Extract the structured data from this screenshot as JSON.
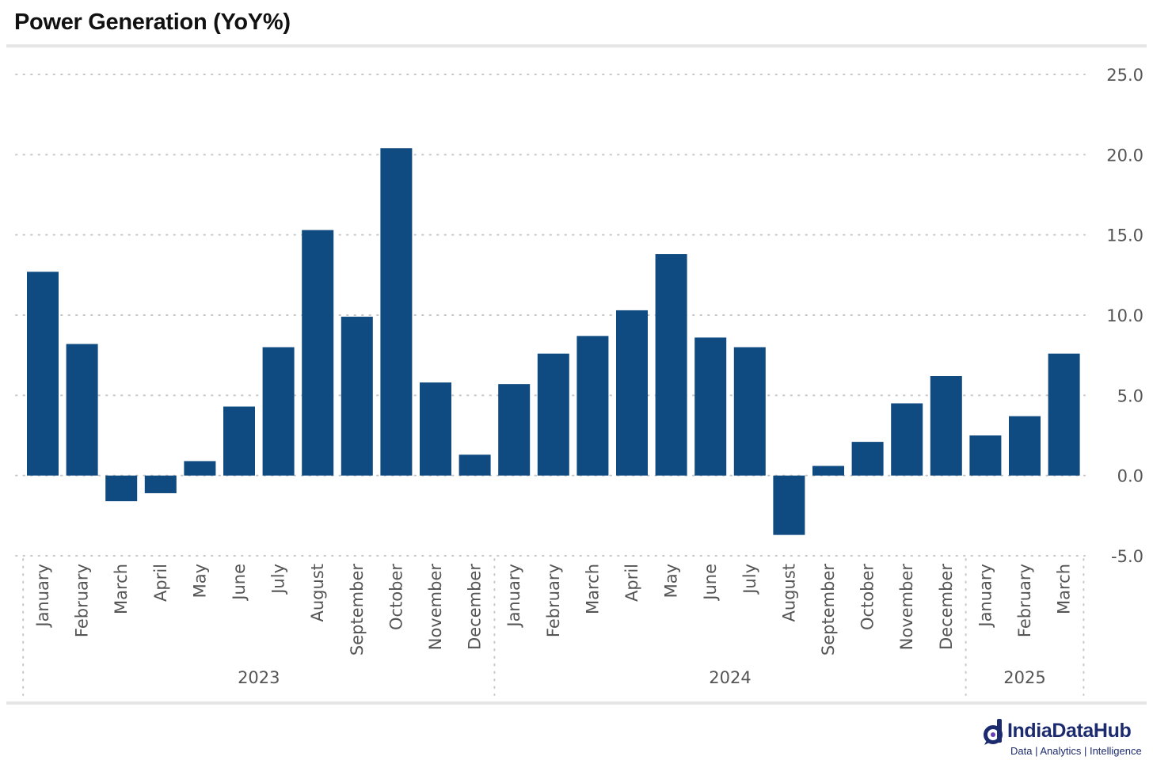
{
  "title": "Power Generation (YoY%)",
  "colors": {
    "bar": "#0f4a80",
    "grid": "#c8c8c8",
    "axis_text": "#555555",
    "brand": "#1c2a6e",
    "brand_accent": "#6a3fb0"
  },
  "brand": {
    "name": "IndiaDataHub",
    "tagline": "Data | Analytics | Intelligence",
    "icon": "dh-logo-icon"
  },
  "chart_data": {
    "type": "bar",
    "title": "Power Generation (YoY%)",
    "xlabel": "",
    "ylabel": "",
    "ylim": [
      -5,
      25
    ],
    "yticks": [
      25,
      20,
      15,
      10,
      5,
      0,
      -5
    ],
    "ytick_labels": [
      "25.0",
      "20.0",
      "15.0",
      "10.0",
      "5.0",
      "0.0",
      "-5.0"
    ],
    "y_axis_position": "right",
    "grid": true,
    "legend": "none",
    "categories": [
      "January",
      "February",
      "March",
      "April",
      "May",
      "June",
      "July",
      "August",
      "September",
      "October",
      "November",
      "December",
      "January",
      "February",
      "March",
      "April",
      "May",
      "June",
      "July",
      "August",
      "September",
      "October",
      "November",
      "December",
      "January",
      "February",
      "March"
    ],
    "groups": [
      {
        "label": "2023",
        "count": 12
      },
      {
        "label": "2024",
        "count": 12
      },
      {
        "label": "2025",
        "count": 3
      }
    ],
    "values": [
      12.7,
      8.2,
      -1.6,
      -1.1,
      0.9,
      4.3,
      8.0,
      15.3,
      9.9,
      20.4,
      5.8,
      1.3,
      5.7,
      7.6,
      8.7,
      10.3,
      13.8,
      8.6,
      8.0,
      -3.7,
      0.6,
      2.1,
      4.5,
      6.2,
      2.5,
      3.7,
      7.6
    ]
  }
}
